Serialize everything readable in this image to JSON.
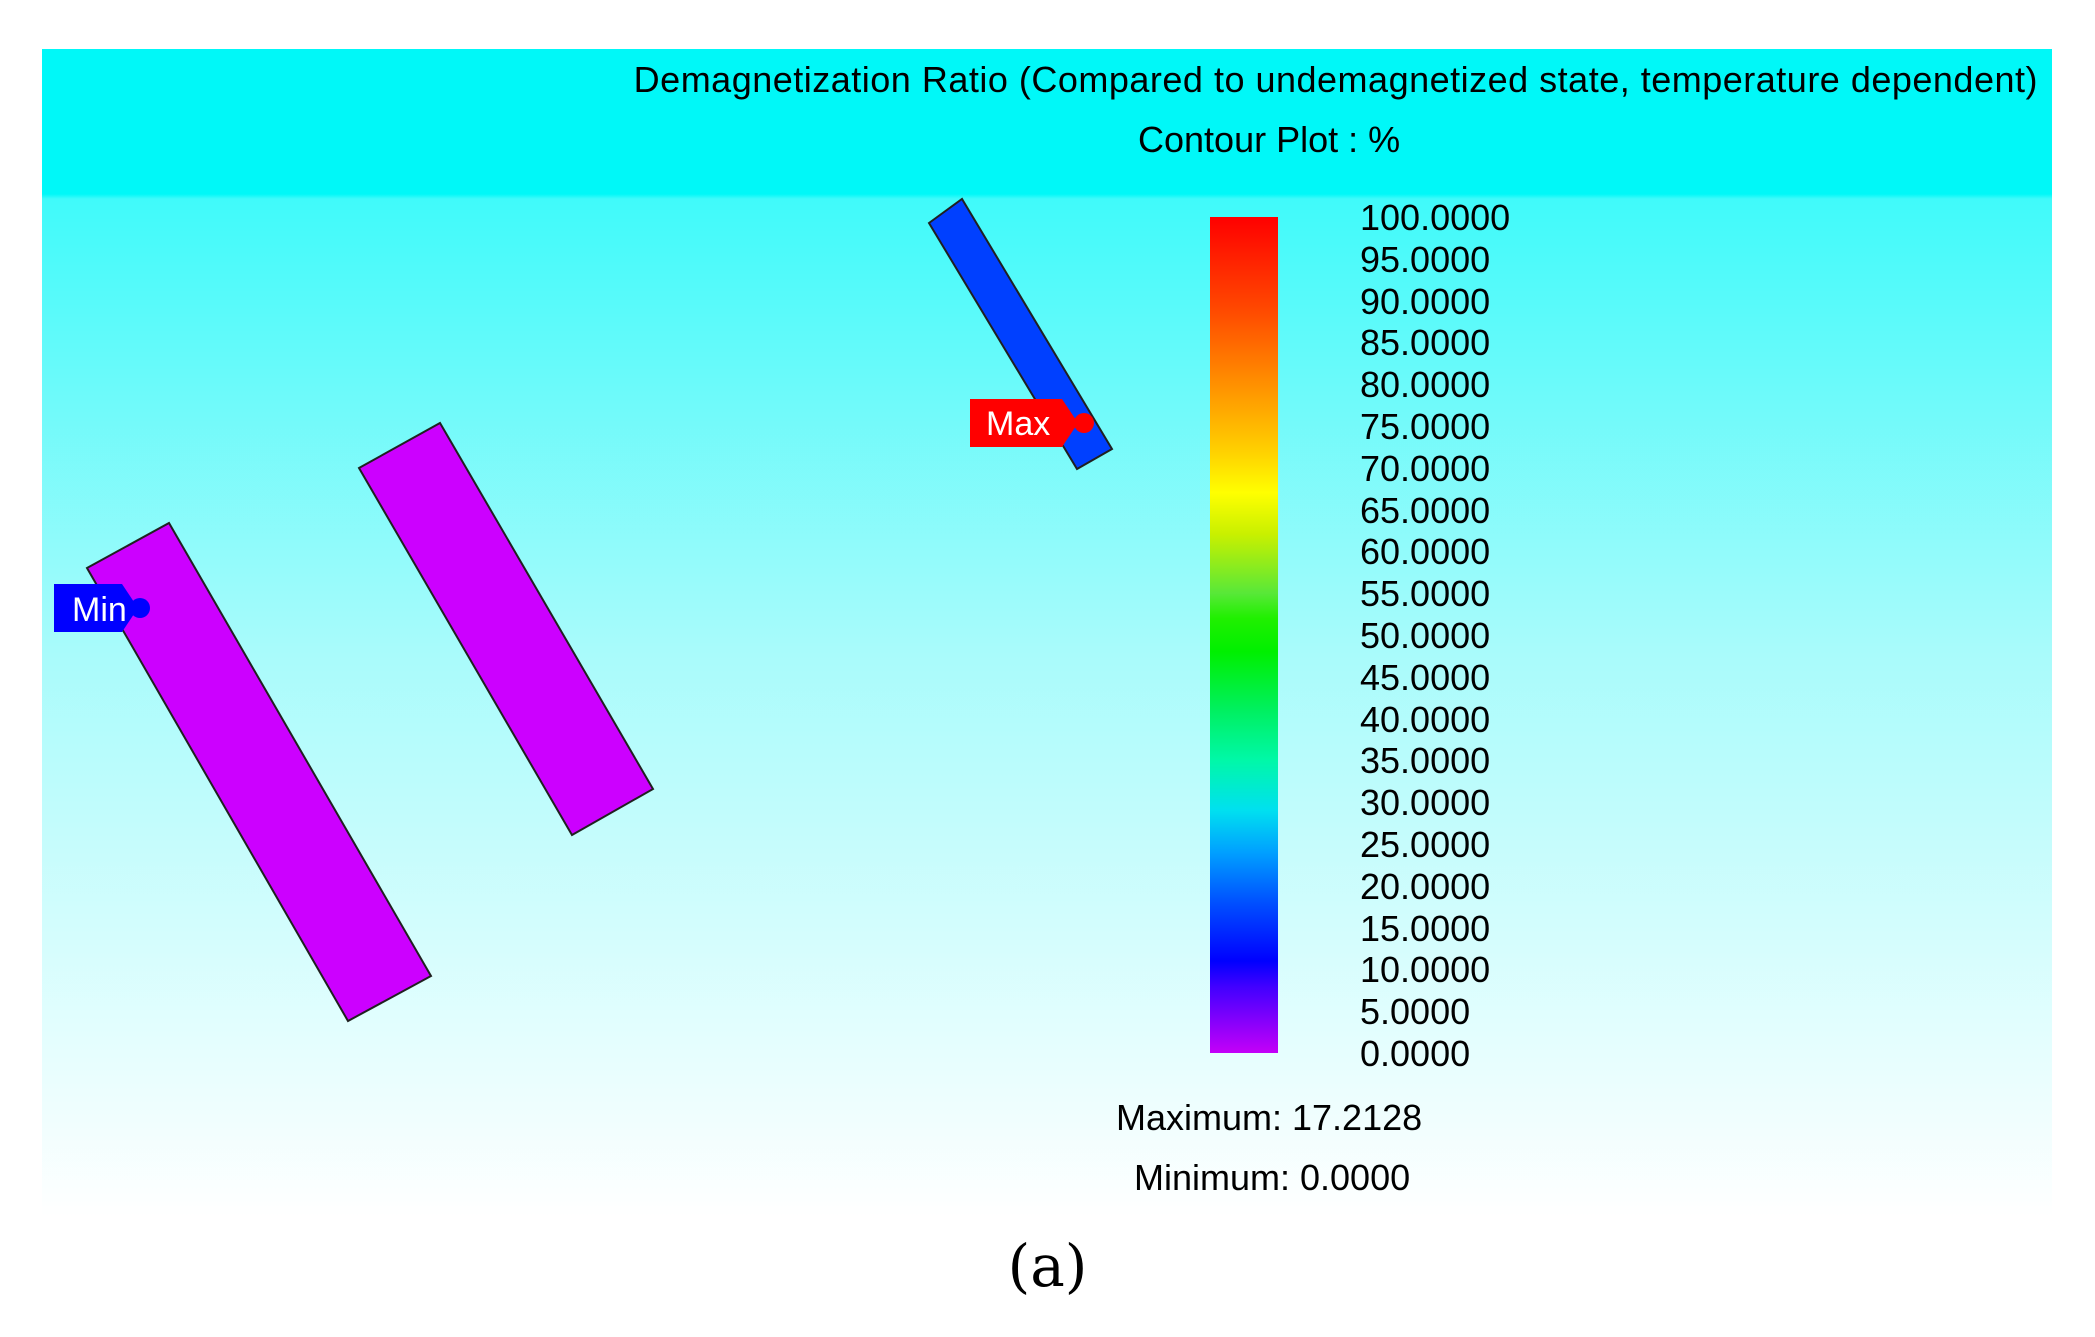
{
  "title": "Demagnetization Ratio (Compared to undemagnetized state, temperature dependent)",
  "subtitle": "Contour Plot : %",
  "colorbar": {
    "ticks": [
      "100.0000",
      "95.0000",
      "90.0000",
      "85.0000",
      "80.0000",
      "75.0000",
      "70.0000",
      "65.0000",
      "60.0000",
      "55.0000",
      "50.0000",
      "45.0000",
      "40.0000",
      "35.0000",
      "30.0000",
      "25.0000",
      "20.0000",
      "15.0000",
      "10.0000",
      "5.0000",
      "0.0000"
    ],
    "range": [
      0,
      100
    ],
    "low_color": "#c400f8",
    "high_color": "#ff0000"
  },
  "stats": {
    "maximum": "Maximum: 17.2128",
    "minimum": "Minimum: 0.0000"
  },
  "markers": {
    "max_label": "Max",
    "max_color": "#ff0000",
    "min_label": "Min",
    "min_color": "#0000ff"
  },
  "magnets": {
    "fill_low": "#cc00ff",
    "fill_high": "#0040ff"
  },
  "panel_label": "(a)"
}
